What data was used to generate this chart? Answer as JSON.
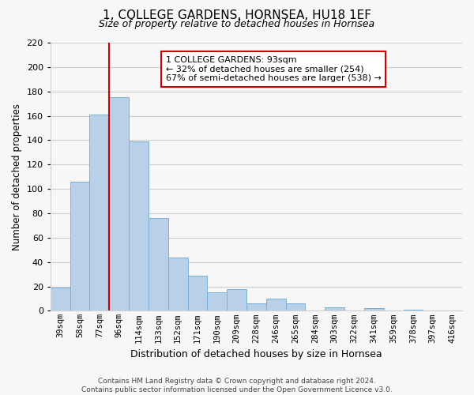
{
  "title": "1, COLLEGE GARDENS, HORNSEA, HU18 1EF",
  "subtitle": "Size of property relative to detached houses in Hornsea",
  "xlabel": "Distribution of detached houses by size in Hornsea",
  "ylabel": "Number of detached properties",
  "bar_values": [
    19,
    106,
    161,
    175,
    139,
    76,
    44,
    29,
    15,
    18,
    6,
    10,
    6,
    0,
    3,
    0,
    2,
    0,
    1,
    0,
    0
  ],
  "bar_labels": [
    "39sqm",
    "58sqm",
    "77sqm",
    "96sqm",
    "114sqm",
    "133sqm",
    "152sqm",
    "171sqm",
    "190sqm",
    "209sqm",
    "228sqm",
    "246sqm",
    "265sqm",
    "284sqm",
    "303sqm",
    "322sqm",
    "341sqm",
    "359sqm",
    "378sqm",
    "397sqm",
    "416sqm"
  ],
  "bar_color": "#b8d0e8",
  "bar_edge_color": "#7aafd4",
  "grid_color": "#d0d0d0",
  "vline_color": "#cc0000",
  "annotation_text": "1 COLLEGE GARDENS: 93sqm\n← 32% of detached houses are smaller (254)\n67% of semi-detached houses are larger (538) →",
  "annotation_box_color": "#ffffff",
  "annotation_box_edge": "#cc0000",
  "ylim": [
    0,
    220
  ],
  "yticks": [
    0,
    20,
    40,
    60,
    80,
    100,
    120,
    140,
    160,
    180,
    200,
    220
  ],
  "footer_text": "Contains HM Land Registry data © Crown copyright and database right 2024.\nContains public sector information licensed under the Open Government Licence v3.0.",
  "bg_color": "#f7f7f7"
}
